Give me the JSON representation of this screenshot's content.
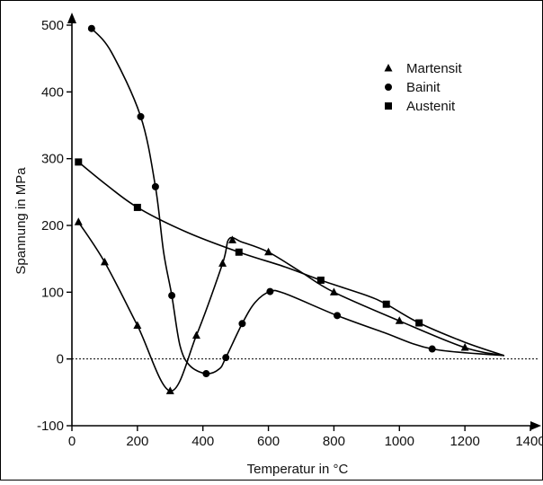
{
  "chart_data": {
    "type": "line",
    "xlabel": "Temperatur in °C",
    "ylabel": "Spannung in MPa",
    "xlim": [
      0,
      1400
    ],
    "ylim": [
      -100,
      500
    ],
    "x_ticks": [
      0,
      200,
      400,
      600,
      800,
      1000,
      1200,
      1400
    ],
    "y_ticks": [
      -100,
      0,
      100,
      200,
      300,
      400,
      500
    ],
    "zero_line": "dotted",
    "grid": false,
    "legend_position": "top-right",
    "series": [
      {
        "name": "Martensit",
        "marker": "triangle",
        "markers": [
          [
            20,
            205
          ],
          [
            100,
            145
          ],
          [
            200,
            50
          ],
          [
            300,
            -48
          ],
          [
            380,
            35
          ],
          [
            460,
            143
          ],
          [
            490,
            178
          ],
          [
            600,
            160
          ],
          [
            800,
            100
          ],
          [
            1000,
            57
          ],
          [
            1200,
            17
          ]
        ],
        "curve": [
          [
            20,
            205
          ],
          [
            100,
            145
          ],
          [
            200,
            50
          ],
          [
            300,
            -48
          ],
          [
            380,
            35
          ],
          [
            460,
            143
          ],
          [
            480,
            180
          ],
          [
            520,
            175
          ],
          [
            600,
            160
          ],
          [
            700,
            130
          ],
          [
            800,
            100
          ],
          [
            1000,
            57
          ],
          [
            1200,
            17
          ],
          [
            1320,
            5
          ]
        ]
      },
      {
        "name": "Bainit",
        "marker": "circle",
        "markers": [
          [
            60,
            495
          ],
          [
            210,
            363
          ],
          [
            255,
            258
          ],
          [
            305,
            95
          ],
          [
            410,
            -22
          ],
          [
            470,
            2
          ],
          [
            520,
            53
          ],
          [
            605,
            101
          ],
          [
            810,
            65
          ],
          [
            1100,
            15
          ]
        ],
        "curve": [
          [
            60,
            495
          ],
          [
            120,
            460
          ],
          [
            210,
            363
          ],
          [
            255,
            258
          ],
          [
            280,
            160
          ],
          [
            305,
            95
          ],
          [
            330,
            20
          ],
          [
            360,
            -10
          ],
          [
            410,
            -22
          ],
          [
            450,
            -15
          ],
          [
            470,
            2
          ],
          [
            520,
            53
          ],
          [
            560,
            85
          ],
          [
            605,
            101
          ],
          [
            650,
            98
          ],
          [
            810,
            65
          ],
          [
            950,
            40
          ],
          [
            1100,
            15
          ],
          [
            1320,
            5
          ]
        ]
      },
      {
        "name": "Austenit",
        "marker": "square",
        "markers": [
          [
            20,
            295
          ],
          [
            200,
            227
          ],
          [
            510,
            160
          ],
          [
            760,
            118
          ],
          [
            960,
            82
          ],
          [
            1060,
            54
          ]
        ],
        "curve": [
          [
            20,
            295
          ],
          [
            100,
            263
          ],
          [
            200,
            227
          ],
          [
            350,
            190
          ],
          [
            510,
            160
          ],
          [
            650,
            138
          ],
          [
            760,
            118
          ],
          [
            900,
            95
          ],
          [
            960,
            82
          ],
          [
            1060,
            54
          ],
          [
            1200,
            25
          ],
          [
            1320,
            5
          ]
        ]
      }
    ]
  }
}
